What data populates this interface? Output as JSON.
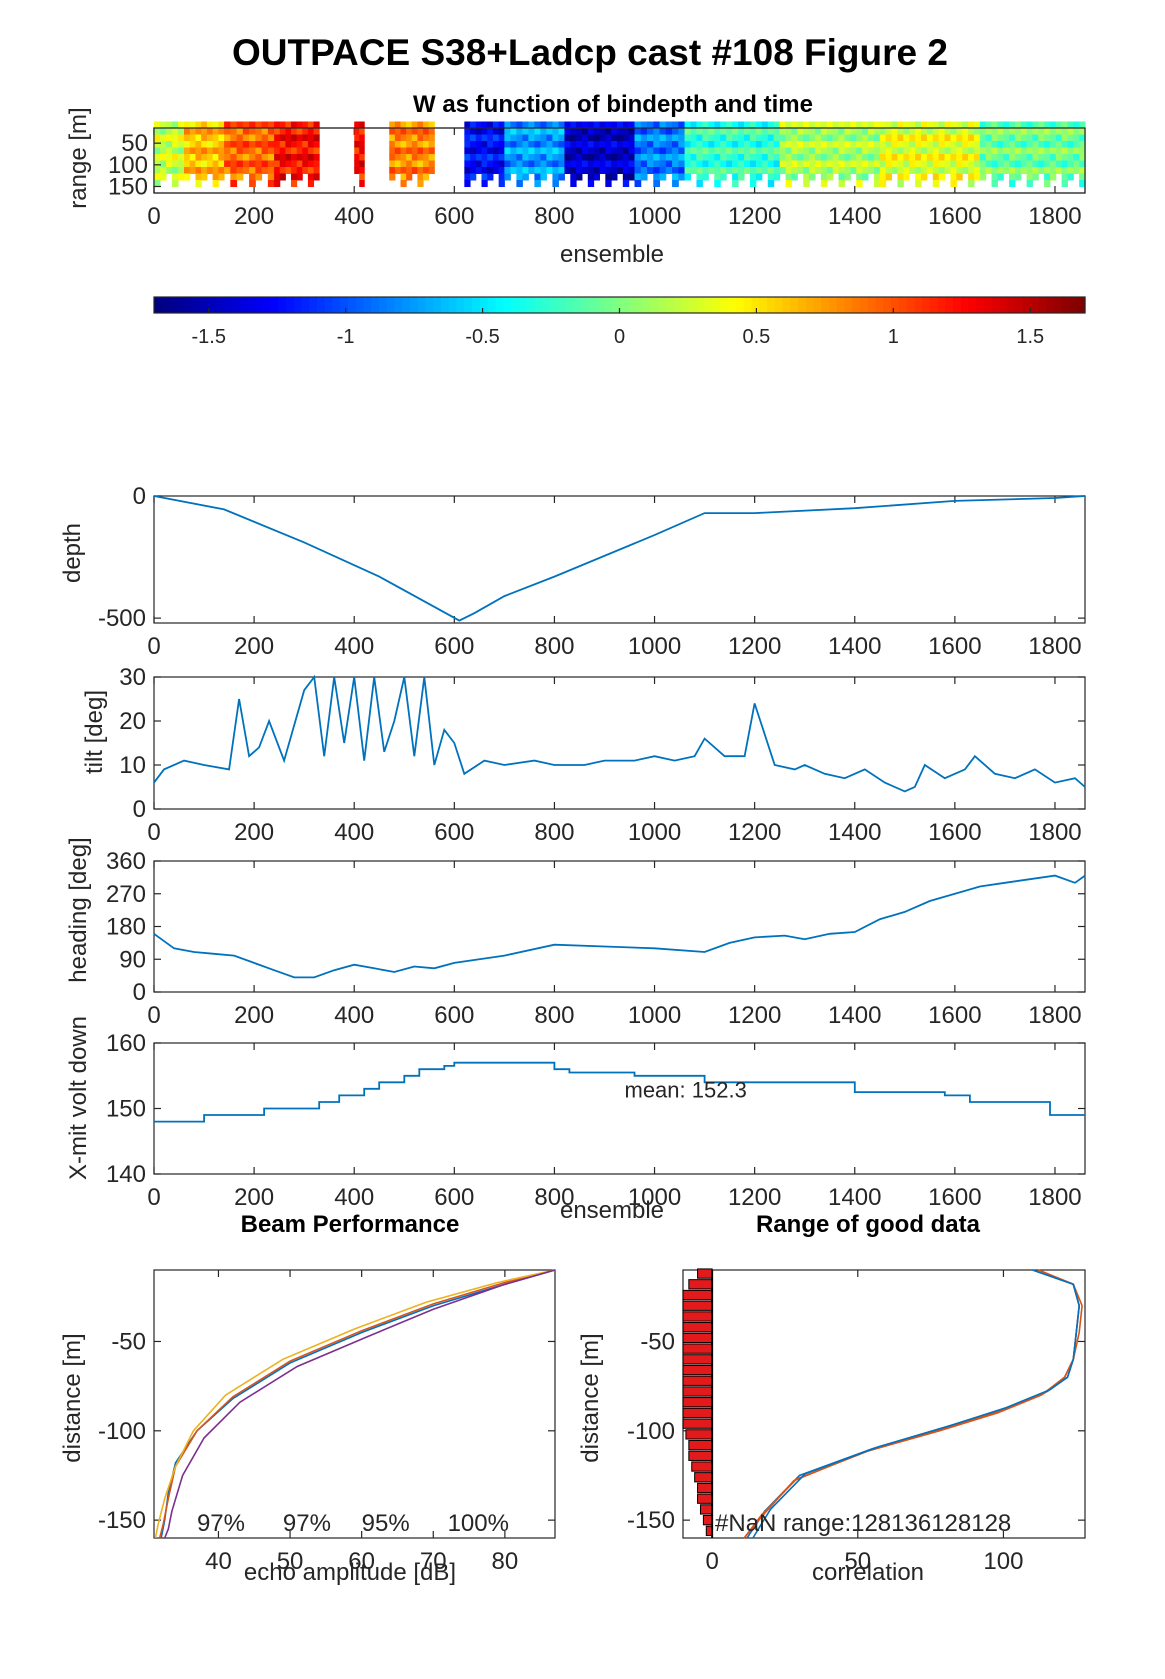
{
  "figure_title": "OUTPACE S38+Ladcp cast #108 Figure 2",
  "colors": {
    "line": "#0072BD",
    "axis": "#262626",
    "bar": "#e31a1c",
    "beam1": "#0072BD",
    "beam2": "#D95319",
    "beam3": "#EDB120",
    "beam4": "#7E2F8E"
  },
  "chart_data": [
    {
      "id": "w",
      "type": "heatmap",
      "title": "W as function of bindepth and time",
      "xlabel": "ensemble",
      "ylabel": "range [m]",
      "xlim": [
        0,
        1860
      ],
      "ylim": [
        15,
        165
      ],
      "xticks": [
        "0",
        "200",
        "400",
        "600",
        "800",
        "1000",
        "1200",
        "1400",
        "1600",
        "1800"
      ],
      "yticks": [
        "50",
        "100",
        "150"
      ],
      "blocks": [
        {
          "x0": 0,
          "x1": 60,
          "v": 0.2
        },
        {
          "x0": 60,
          "x1": 140,
          "v": 0.6
        },
        {
          "x0": 140,
          "x1": 240,
          "v": 0.9
        },
        {
          "x0": 240,
          "x1": 330,
          "v": 1.2
        },
        {
          "x0": 330,
          "x1": 400,
          "v": null
        },
        {
          "x0": 400,
          "x1": 420,
          "v": 1.2
        },
        {
          "x0": 420,
          "x1": 470,
          "v": null
        },
        {
          "x0": 470,
          "x1": 560,
          "v": 0.8
        },
        {
          "x0": 560,
          "x1": 620,
          "v": null
        },
        {
          "x0": 620,
          "x1": 700,
          "v": -1.3
        },
        {
          "x0": 700,
          "x1": 820,
          "v": -0.8
        },
        {
          "x0": 820,
          "x1": 960,
          "v": -1.5
        },
        {
          "x0": 960,
          "x1": 1060,
          "v": -0.9
        },
        {
          "x0": 1060,
          "x1": 1250,
          "v": -0.3
        },
        {
          "x0": 1250,
          "x1": 1450,
          "v": 0.1
        },
        {
          "x0": 1450,
          "x1": 1650,
          "v": 0.3
        },
        {
          "x0": 1650,
          "x1": 1860,
          "v": -0.1
        }
      ]
    },
    {
      "id": "colorbar",
      "type": "heatmap",
      "clim": [
        -1.7,
        1.7
      ],
      "ticks": [
        "-1.5",
        "-1",
        "-0.5",
        "0",
        "0.5",
        "1",
        "1.5"
      ],
      "tick_values": [
        -1.5,
        -1,
        -0.5,
        0,
        0.5,
        1,
        1.5
      ]
    },
    {
      "id": "depth",
      "type": "line",
      "ylabel": "depth",
      "xlim": [
        0,
        1860
      ],
      "ylim": [
        -520,
        0
      ],
      "xticks": [
        "0",
        "200",
        "400",
        "600",
        "800",
        "1000",
        "1200",
        "1400",
        "1600",
        "1800"
      ],
      "yticks": [
        "0",
        "-500"
      ],
      "ytick_values": [
        0,
        -500
      ],
      "x": [
        0,
        140,
        300,
        450,
        610,
        640,
        700,
        800,
        1000,
        1100,
        1200,
        1400,
        1600,
        1800,
        1860
      ],
      "y": [
        0,
        -55,
        -190,
        -330,
        -510,
        -480,
        -410,
        -330,
        -160,
        -70,
        -70,
        -50,
        -20,
        -8,
        0
      ]
    },
    {
      "id": "tilt",
      "type": "line",
      "ylabel": "tilt [deg]",
      "xlim": [
        0,
        1860
      ],
      "ylim": [
        0,
        30
      ],
      "xticks": [
        "0",
        "200",
        "400",
        "600",
        "800",
        "1000",
        "1200",
        "1400",
        "1600",
        "1800"
      ],
      "yticks": [
        "0",
        "10",
        "20",
        "30"
      ],
      "ytick_values": [
        0,
        10,
        20,
        30
      ],
      "x": [
        0,
        20,
        60,
        100,
        150,
        170,
        190,
        210,
        230,
        260,
        300,
        320,
        340,
        360,
        380,
        400,
        420,
        440,
        460,
        480,
        500,
        520,
        540,
        560,
        580,
        600,
        620,
        660,
        700,
        760,
        800,
        860,
        900,
        960,
        1000,
        1040,
        1080,
        1100,
        1140,
        1180,
        1200,
        1240,
        1280,
        1300,
        1340,
        1380,
        1420,
        1460,
        1500,
        1520,
        1540,
        1580,
        1620,
        1640,
        1680,
        1720,
        1760,
        1800,
        1840,
        1860
      ],
      "y": [
        6,
        9,
        11,
        10,
        9,
        25,
        12,
        14,
        20,
        11,
        27,
        30,
        12,
        30,
        15,
        30,
        11,
        30,
        13,
        20,
        30,
        12,
        30,
        10,
        18,
        15,
        8,
        11,
        10,
        11,
        10,
        10,
        11,
        11,
        12,
        11,
        12,
        16,
        12,
        12,
        24,
        10,
        9,
        10,
        8,
        7,
        9,
        6,
        4,
        5,
        10,
        7,
        9,
        12,
        8,
        7,
        9,
        6,
        7,
        5
      ]
    },
    {
      "id": "heading",
      "type": "line",
      "ylabel": "heading [deg]",
      "xlim": [
        0,
        1860
      ],
      "ylim": [
        0,
        360
      ],
      "xticks": [
        "0",
        "200",
        "400",
        "600",
        "800",
        "1000",
        "1200",
        "1400",
        "1600",
        "1800"
      ],
      "yticks": [
        "0",
        "90",
        "180",
        "270",
        "360"
      ],
      "ytick_values": [
        0,
        90,
        180,
        270,
        360
      ],
      "x": [
        0,
        40,
        80,
        120,
        160,
        200,
        240,
        280,
        320,
        360,
        400,
        440,
        480,
        520,
        560,
        600,
        700,
        800,
        900,
        1000,
        1100,
        1150,
        1200,
        1260,
        1300,
        1350,
        1400,
        1450,
        1500,
        1550,
        1600,
        1650,
        1700,
        1750,
        1800,
        1840,
        1860
      ],
      "y": [
        160,
        120,
        110,
        105,
        100,
        80,
        60,
        40,
        40,
        60,
        75,
        65,
        55,
        70,
        65,
        80,
        100,
        130,
        125,
        120,
        110,
        135,
        150,
        155,
        145,
        160,
        165,
        200,
        220,
        250,
        270,
        290,
        300,
        310,
        320,
        300,
        320
      ]
    },
    {
      "id": "voltage",
      "type": "line",
      "ylabel": "X-mit volt down",
      "xlabel": "ensemble",
      "xlim": [
        0,
        1860
      ],
      "ylim": [
        140,
        160
      ],
      "xticks": [
        "0",
        "200",
        "400",
        "600",
        "800",
        "1000",
        "1200",
        "1400",
        "1600",
        "1800"
      ],
      "yticks": [
        "140",
        "150",
        "160"
      ],
      "ytick_values": [
        140,
        150,
        160
      ],
      "annotation": "mean: 152.3",
      "annotation_xy": [
        940,
        152.3
      ],
      "x": [
        0,
        100,
        100,
        220,
        220,
        330,
        330,
        370,
        370,
        420,
        420,
        450,
        450,
        500,
        500,
        530,
        530,
        580,
        580,
        600,
        600,
        800,
        800,
        830,
        830,
        960,
        960,
        1100,
        1100,
        1400,
        1400,
        1580,
        1580,
        1630,
        1630,
        1790,
        1790,
        1860
      ],
      "y": [
        148,
        148,
        149,
        149,
        150,
        150,
        151,
        151,
        152,
        152,
        153,
        153,
        154,
        154,
        155,
        155,
        156,
        156,
        156.5,
        156.5,
        157,
        157,
        156,
        156,
        155.5,
        155.5,
        155,
        155,
        154,
        154,
        152.5,
        152.5,
        152,
        152,
        151,
        151,
        149,
        149
      ]
    },
    {
      "id": "beam",
      "type": "line",
      "title": "Beam Performance",
      "xlabel": "echo amplitude [dB]",
      "ylabel": "distance [m]",
      "xlim": [
        31,
        87
      ],
      "ylim": [
        -160,
        -10
      ],
      "xticks": [
        "40",
        "50",
        "60",
        "70",
        "80"
      ],
      "xtick_values": [
        40,
        50,
        60,
        70,
        80
      ],
      "yticks": [
        "-50",
        "-100",
        "-150"
      ],
      "ytick_values": [
        -50,
        -100,
        -150
      ],
      "percent_labels": [
        "97%",
        "97%",
        "95%",
        "100%"
      ],
      "percent_x": [
        37,
        49,
        60,
        72
      ],
      "series": [
        {
          "x": [
            87,
            80,
            70,
            60,
            50,
            42,
            37,
            34,
            33,
            32.5,
            32
          ],
          "y": [
            -10,
            -18,
            -30,
            -45,
            -62,
            -82,
            -100,
            -118,
            -135,
            -150,
            -160
          ]
        },
        {
          "x": [
            87,
            80,
            70,
            60,
            50,
            42,
            37,
            34,
            33,
            32.3,
            31.8
          ],
          "y": [
            -10,
            -17,
            -29,
            -44,
            -61,
            -81,
            -100,
            -120,
            -138,
            -152,
            -160
          ]
        },
        {
          "x": [
            87,
            79,
            69,
            59,
            49,
            41,
            36.5,
            34,
            32.5,
            31.6,
            31.2
          ],
          "y": [
            -10,
            -17,
            -28,
            -43,
            -60,
            -80,
            -100,
            -120,
            -138,
            -152,
            -160
          ]
        },
        {
          "x": [
            87,
            80,
            70,
            61,
            51,
            43,
            38,
            35,
            33.5,
            33,
            32.5
          ],
          "y": [
            -10,
            -18,
            -32,
            -47,
            -64,
            -84,
            -104,
            -125,
            -145,
            -155,
            -160
          ]
        }
      ]
    },
    {
      "id": "range",
      "type": "line",
      "title": "Range of good data",
      "xlabel": "correlation",
      "ylabel": "distance [m]",
      "xlim": [
        -10,
        128
      ],
      "ylim": [
        -160,
        -10
      ],
      "xticks": [
        "0",
        "50",
        "100"
      ],
      "xtick_values": [
        0,
        50,
        100
      ],
      "yticks": [
        "-50",
        "-100",
        "-150"
      ],
      "ytick_values": [
        -50,
        -100,
        -150
      ],
      "annotation": "#NaN range:128136128128",
      "bars": [
        {
          "y": -12,
          "w": 5
        },
        {
          "y": -18,
          "w": 8
        },
        {
          "y": -24,
          "w": 10
        },
        {
          "y": -30,
          "w": 10
        },
        {
          "y": -36,
          "w": 10
        },
        {
          "y": -42,
          "w": 10
        },
        {
          "y": -48,
          "w": 10
        },
        {
          "y": -54,
          "w": 10
        },
        {
          "y": -60,
          "w": 10
        },
        {
          "y": -66,
          "w": 10
        },
        {
          "y": -72,
          "w": 10
        },
        {
          "y": -78,
          "w": 10
        },
        {
          "y": -84,
          "w": 10
        },
        {
          "y": -90,
          "w": 10
        },
        {
          "y": -96,
          "w": 10
        },
        {
          "y": -102,
          "w": 9
        },
        {
          "y": -108,
          "w": 8
        },
        {
          "y": -114,
          "w": 8
        },
        {
          "y": -120,
          "w": 7
        },
        {
          "y": -126,
          "w": 6
        },
        {
          "y": -132,
          "w": 5
        },
        {
          "y": -138,
          "w": 5
        },
        {
          "y": -144,
          "w": 4
        },
        {
          "y": -150,
          "w": 3
        },
        {
          "y": -156,
          "w": 2
        }
      ],
      "series": [
        {
          "x": [
            110,
            124,
            126,
            125,
            124,
            122,
            115,
            100,
            80,
            55,
            30,
            18,
            12
          ],
          "y": [
            -10,
            -18,
            -30,
            -45,
            -60,
            -70,
            -78,
            -88,
            -98,
            -110,
            -125,
            -145,
            -160
          ]
        },
        {
          "x": [
            112,
            124,
            126,
            125,
            124,
            121,
            113,
            98,
            78,
            52,
            28,
            17,
            11
          ],
          "y": [
            -10,
            -18,
            -30,
            -45,
            -60,
            -70,
            -80,
            -90,
            -100,
            -112,
            -128,
            -148,
            -160
          ]
        },
        {
          "x": [
            112,
            124,
            127,
            126,
            124,
            121,
            114,
            99,
            79,
            54,
            29,
            17,
            11
          ],
          "y": [
            -10,
            -18,
            -30,
            -45,
            -60,
            -70,
            -79,
            -89,
            -99,
            -111,
            -127,
            -147,
            -160
          ]
        },
        {
          "x": [
            110,
            124,
            126,
            125,
            124,
            122,
            116,
            101,
            82,
            57,
            32,
            20,
            14
          ],
          "y": [
            -10,
            -18,
            -30,
            -45,
            -60,
            -70,
            -77,
            -87,
            -97,
            -109,
            -124,
            -144,
            -160
          ]
        }
      ]
    }
  ]
}
